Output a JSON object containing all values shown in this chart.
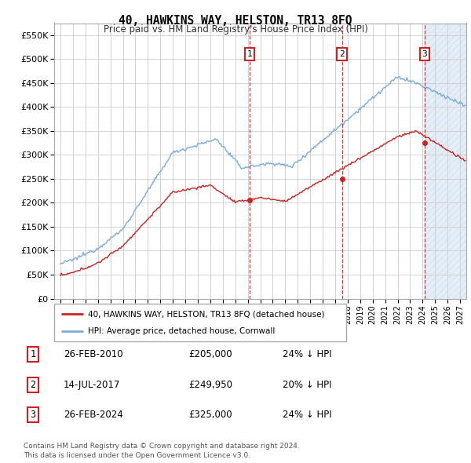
{
  "title": "40, HAWKINS WAY, HELSTON, TR13 8FQ",
  "subtitle": "Price paid vs. HM Land Registry's House Price Index (HPI)",
  "ylabel_ticks": [
    "£0",
    "£50K",
    "£100K",
    "£150K",
    "£200K",
    "£250K",
    "£300K",
    "£350K",
    "£400K",
    "£450K",
    "£500K",
    "£550K"
  ],
  "ytick_vals": [
    0,
    50000,
    100000,
    150000,
    200000,
    250000,
    300000,
    350000,
    400000,
    450000,
    500000,
    550000
  ],
  "ylim": [
    0,
    575000
  ],
  "xlim_start": 1994.5,
  "xlim_end": 2027.5,
  "hpi_color": "#7aabdc",
  "sale_color": "#cc2222",
  "vline_color": "#cc2222",
  "sale_dates": [
    2010.13,
    2017.54,
    2024.15
  ],
  "sale_prices": [
    205000,
    249950,
    325000
  ],
  "transaction_labels": [
    "1",
    "2",
    "3"
  ],
  "legend_label_sale": "40, HAWKINS WAY, HELSTON, TR13 8FQ (detached house)",
  "legend_label_hpi": "HPI: Average price, detached house, Cornwall",
  "table_rows": [
    [
      "1",
      "26-FEB-2010",
      "£205,000",
      "24% ↓ HPI"
    ],
    [
      "2",
      "14-JUL-2017",
      "£249,950",
      "20% ↓ HPI"
    ],
    [
      "3",
      "26-FEB-2024",
      "£325,000",
      "24% ↓ HPI"
    ]
  ],
  "footnote": "Contains HM Land Registry data © Crown copyright and database right 2024.\nThis data is licensed under the Open Government Licence v3.0.",
  "grid_color": "#cccccc",
  "hatch_color": "#ccddf0",
  "bg_color": "#f5f5f5"
}
